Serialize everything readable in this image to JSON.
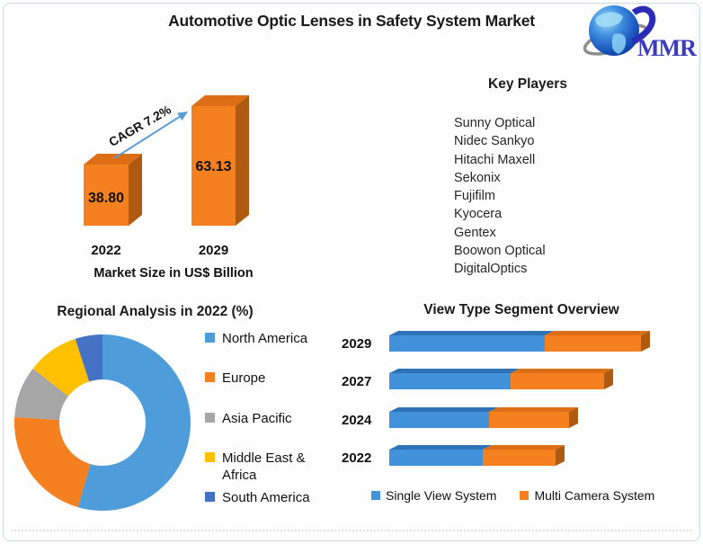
{
  "header": {
    "title": "Automotive Optic Lenses in Safety System Market",
    "logo": {
      "text": "MMR"
    }
  },
  "key_players": {
    "title": "Key Players",
    "companies": [
      "Sunny Optical",
      "Nidec Sankyo",
      "Hitachi Maxell",
      "Sekonix",
      "Fujifilm",
      "Kyocera",
      "Gentex",
      "Boowon Optical",
      "DigitalOptics"
    ]
  },
  "chart_data": [
    {
      "id": "market_size",
      "type": "bar",
      "style": "3d-column",
      "title": "Market Size in US$ Billion",
      "categories": [
        "2022",
        "2029"
      ],
      "values": [
        38.8,
        63.13
      ],
      "value_labels": [
        "38.80",
        "63.13"
      ],
      "annotation": "CAGR 7.2%",
      "bar_color": "#F5801F",
      "ylim": [
        0,
        70
      ]
    },
    {
      "id": "regional_analysis",
      "type": "pie",
      "style": "donut",
      "title": "Regional Analysis in 2022 (%)",
      "labels": [
        "North America",
        "Europe",
        "Asia Pacific",
        "Middle East & Africa",
        "South America"
      ],
      "values": [
        54.5,
        21.5,
        9.5,
        9.5,
        5
      ],
      "colors": [
        "#4E9CD9",
        "#F5801F",
        "#A6A6A6",
        "#FFC000",
        "#4472C4"
      ],
      "legend_position": "right"
    },
    {
      "id": "view_type_segment",
      "type": "bar",
      "style": "3d-horizontal-stacked",
      "title": "View Type Segment Overview",
      "categories": [
        "2029",
        "2027",
        "2024",
        "2022"
      ],
      "series": [
        {
          "name": "Single View System",
          "color": "#4191DB",
          "values": [
            173,
            135,
            111,
            104
          ]
        },
        {
          "name": "Multi Camera System",
          "color": "#F5801F",
          "values": [
            107,
            104,
            89,
            81
          ]
        }
      ],
      "units": "relative length (no value axis shown)",
      "legend_position": "bottom"
    }
  ]
}
